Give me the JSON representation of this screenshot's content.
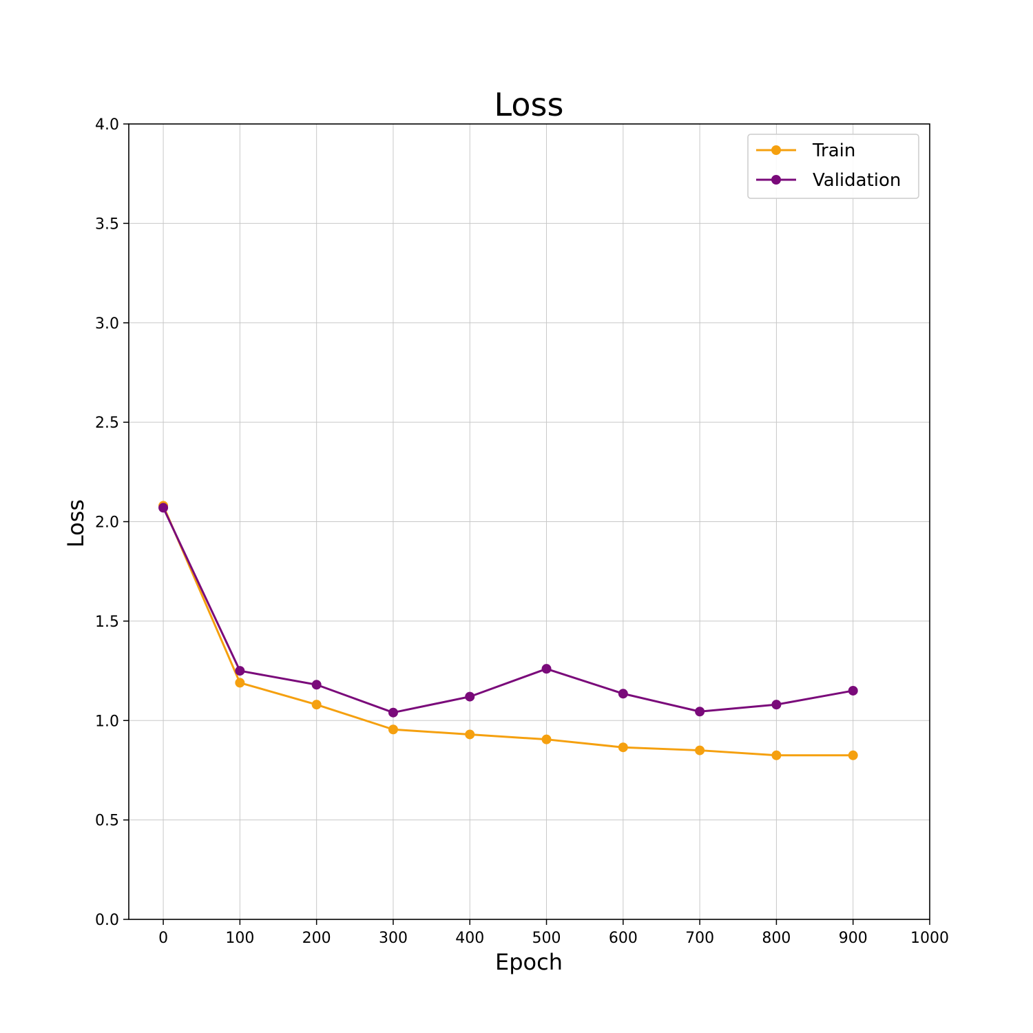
{
  "chart_data": {
    "type": "line",
    "title": "Loss",
    "xlabel": "Epoch",
    "ylabel": "Loss",
    "xlim": [
      -45,
      1000
    ],
    "ylim": [
      0.0,
      4.0
    ],
    "x_ticks": [
      0,
      100,
      200,
      300,
      400,
      500,
      600,
      700,
      800,
      900,
      1000
    ],
    "x_tick_labels": [
      "0",
      "100",
      "200",
      "300",
      "400",
      "500",
      "600",
      "700",
      "800",
      "900",
      "1000"
    ],
    "y_ticks": [
      0.0,
      0.5,
      1.0,
      1.5,
      2.0,
      2.5,
      3.0,
      3.5,
      4.0
    ],
    "y_tick_labels": [
      "0.0",
      "0.5",
      "1.0",
      "1.5",
      "2.0",
      "2.5",
      "3.0",
      "3.5",
      "4.0"
    ],
    "grid": true,
    "legend_position": "top-right",
    "x": [
      0,
      100,
      200,
      300,
      400,
      500,
      600,
      700,
      800,
      900
    ],
    "series": [
      {
        "name": "Train",
        "color": "#f5a00f",
        "marker": "circle",
        "values": [
          2.08,
          1.19,
          1.08,
          0.955,
          0.93,
          0.905,
          0.865,
          0.85,
          0.825,
          0.825
        ]
      },
      {
        "name": "Validation",
        "color": "#7a0a7a",
        "marker": "circle",
        "values": [
          2.07,
          1.25,
          1.18,
          1.04,
          1.12,
          1.26,
          1.135,
          1.045,
          1.08,
          1.15
        ]
      }
    ]
  }
}
